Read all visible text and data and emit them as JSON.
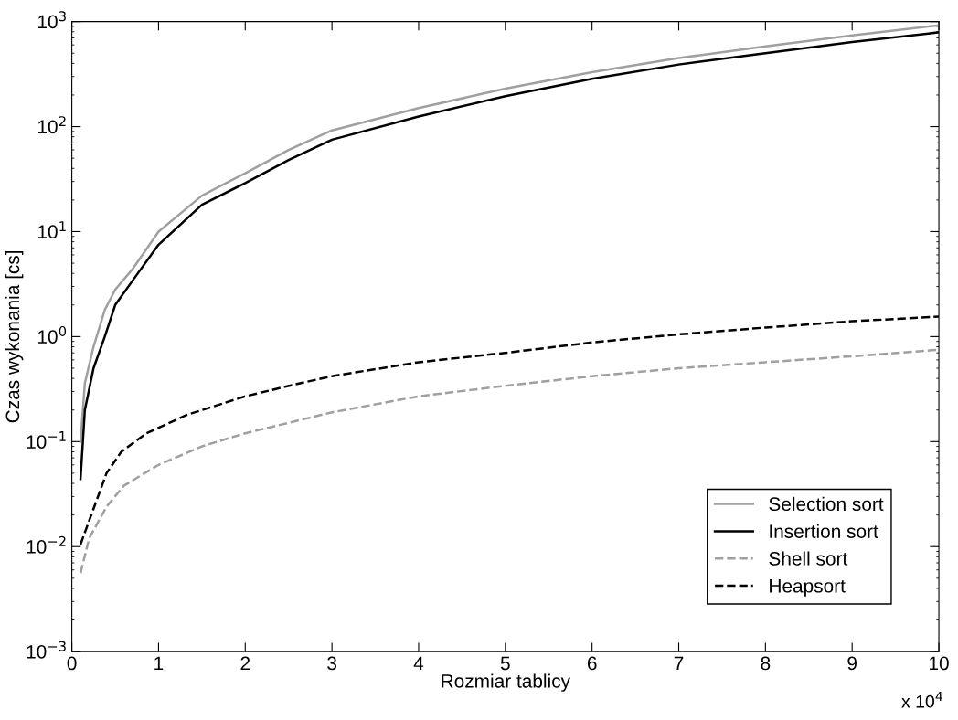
{
  "chart_data": {
    "type": "line",
    "xlabel": "Rozmiar tablicy",
    "ylabel": "Czas wykonania [cs]",
    "annotations": [
      "x 10$^{4}$"
    ],
    "log": "y",
    "grid": false,
    "legend": "bottom right",
    "marker": "none",
    "xlim": [
      0,
      10
    ],
    "ylim": [
      0.001,
      1000
    ],
    "xticks": [
      0,
      1,
      2,
      3,
      4,
      5,
      6,
      7,
      8,
      9,
      10
    ],
    "yticks": [
      {
        "value": 0.001,
        "label": "10$^{−3}$"
      },
      {
        "value": 0.01,
        "label": "10$^{−2}$"
      },
      {
        "value": 0.1,
        "label": "10$^{−1}$"
      },
      {
        "value": 1,
        "label": "10$^{0}$"
      },
      {
        "value": 10,
        "label": "10$^{1}$"
      },
      {
        "value": 100,
        "label": "10$^{2}$"
      },
      {
        "value": 1000,
        "label": "10$^{3}$"
      }
    ],
    "series": [
      {
        "name": "Selection sort",
        "color": "#a0a0a0",
        "line_style": "solid",
        "x": [
          0.1,
          0.15,
          0.25,
          0.38,
          0.5,
          0.71,
          1.0,
          1.5,
          2.0,
          2.5,
          3.0,
          4.0,
          5.0,
          6.0,
          7.0,
          8.0,
          9.0,
          10.0
        ],
        "values": [
          0.1,
          0.36,
          0.8,
          1.8,
          2.8,
          4.5,
          10,
          22,
          36,
          60,
          92,
          150,
          230,
          330,
          450,
          580,
          740,
          920
        ]
      },
      {
        "name": "Insertion sort",
        "color": "#000000",
        "line_style": "solid",
        "x": [
          0.1,
          0.15,
          0.25,
          0.38,
          0.5,
          0.71,
          1.0,
          1.5,
          2.0,
          2.5,
          3.0,
          4.0,
          5.0,
          6.0,
          7.0,
          8.0,
          9.0,
          10.0
        ],
        "values": [
          0.044,
          0.2,
          0.5,
          1.0,
          2.0,
          3.5,
          7.5,
          18,
          29,
          48,
          75,
          125,
          195,
          285,
          390,
          500,
          640,
          790
        ]
      },
      {
        "name": "Shell sort",
        "color": "#a0a0a0",
        "line_style": "dashed",
        "x": [
          0.1,
          0.2,
          0.4,
          0.6,
          1.0,
          1.5,
          2.0,
          3.0,
          4.0,
          5.0,
          6.0,
          7.0,
          8.0,
          9.0,
          10.0
        ],
        "values": [
          0.0056,
          0.012,
          0.024,
          0.038,
          0.06,
          0.09,
          0.12,
          0.19,
          0.27,
          0.34,
          0.42,
          0.5,
          0.57,
          0.65,
          0.75
        ]
      },
      {
        "name": "Heapsort",
        "color": "#000000",
        "line_style": "dashed",
        "x": [
          0.1,
          0.4,
          0.57,
          0.86,
          1.33,
          2.0,
          2.57,
          3.0,
          4.0,
          5.0,
          6.0,
          7.0,
          8.0,
          9.0,
          10.0
        ],
        "values": [
          0.0105,
          0.05,
          0.08,
          0.12,
          0.18,
          0.27,
          0.35,
          0.42,
          0.57,
          0.7,
          0.88,
          1.05,
          1.22,
          1.4,
          1.55
        ]
      }
    ]
  }
}
